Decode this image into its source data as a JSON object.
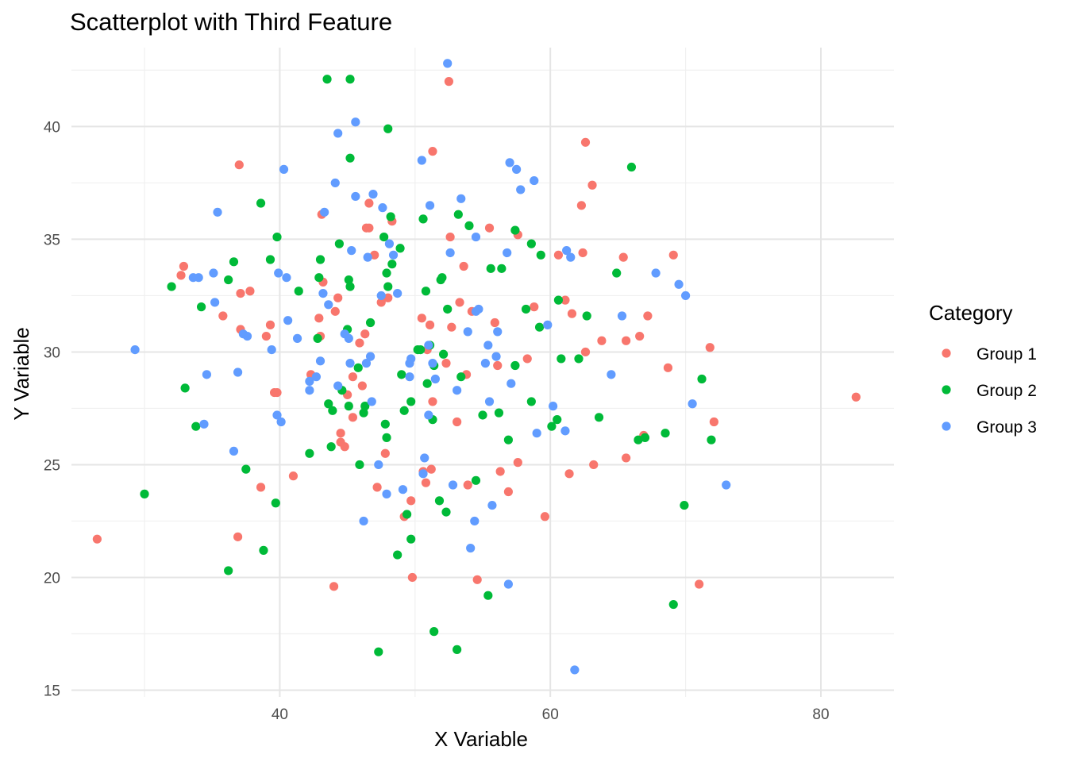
{
  "chart_data": {
    "type": "scatter",
    "title": "Scatterplot with Third Feature",
    "xlabel": "X Variable",
    "ylabel": "Y Variable",
    "xlim": [
      24.6,
      85.4
    ],
    "ylim": [
      14.7,
      43.5
    ],
    "x_ticks": [
      40,
      60,
      80
    ],
    "y_ticks": [
      15,
      20,
      25,
      30,
      35,
      40
    ],
    "grid": true,
    "legend": {
      "title": "Category",
      "position": "right"
    },
    "series": [
      {
        "name": "Group 1",
        "color": "#F8766D",
        "points": [
          [
            26.5,
            21.7
          ],
          [
            32.7,
            33.4
          ],
          [
            32.9,
            33.8
          ],
          [
            36.9,
            21.8
          ],
          [
            37.0,
            38.3
          ],
          [
            37.1,
            32.6
          ],
          [
            37.1,
            31.0
          ],
          [
            35.8,
            31.6
          ],
          [
            37.8,
            32.7
          ],
          [
            38.6,
            24.0
          ],
          [
            39.0,
            30.7
          ],
          [
            39.3,
            31.2
          ],
          [
            39.6,
            28.2
          ],
          [
            39.8,
            28.2
          ],
          [
            41.0,
            24.5
          ],
          [
            42.3,
            29.0
          ],
          [
            42.9,
            31.5
          ],
          [
            43.0,
            30.7
          ],
          [
            43.1,
            36.1
          ],
          [
            43.2,
            33.1
          ],
          [
            44.1,
            31.8
          ],
          [
            44.3,
            32.4
          ],
          [
            44.5,
            26.4
          ],
          [
            44.5,
            26.0
          ],
          [
            44.0,
            19.6
          ],
          [
            44.8,
            25.8
          ],
          [
            45.0,
            28.1
          ],
          [
            45.4,
            28.9
          ],
          [
            45.4,
            27.1
          ],
          [
            45.9,
            30.4
          ],
          [
            46.1,
            28.5
          ],
          [
            46.3,
            30.8
          ],
          [
            46.4,
            35.5
          ],
          [
            46.6,
            35.5
          ],
          [
            46.6,
            36.6
          ],
          [
            47.0,
            34.3
          ],
          [
            47.2,
            24.0
          ],
          [
            47.5,
            32.2
          ],
          [
            47.8,
            25.5
          ],
          [
            48.0,
            32.4
          ],
          [
            48.3,
            35.8
          ],
          [
            49.2,
            22.7
          ],
          [
            49.7,
            23.4
          ],
          [
            49.8,
            20.0
          ],
          [
            50.5,
            31.5
          ],
          [
            50.6,
            24.7
          ],
          [
            50.8,
            24.2
          ],
          [
            50.9,
            30.1
          ],
          [
            51.1,
            31.2
          ],
          [
            51.2,
            24.8
          ],
          [
            51.3,
            27.8
          ],
          [
            51.3,
            38.9
          ],
          [
            52.3,
            29.5
          ],
          [
            52.5,
            42.0
          ],
          [
            52.6,
            35.1
          ],
          [
            52.7,
            31.1
          ],
          [
            53.1,
            26.9
          ],
          [
            53.3,
            32.2
          ],
          [
            53.6,
            33.8
          ],
          [
            53.9,
            24.1
          ],
          [
            53.8,
            29.0
          ],
          [
            54.2,
            31.8
          ],
          [
            54.6,
            19.9
          ],
          [
            55.5,
            35.5
          ],
          [
            55.9,
            31.3
          ],
          [
            56.1,
            29.4
          ],
          [
            56.3,
            24.7
          ],
          [
            56.9,
            23.8
          ],
          [
            57.6,
            25.1
          ],
          [
            57.6,
            35.2
          ],
          [
            58.3,
            29.7
          ],
          [
            58.8,
            32.0
          ],
          [
            59.6,
            22.7
          ],
          [
            60.6,
            34.3
          ],
          [
            61.1,
            32.3
          ],
          [
            61.4,
            24.6
          ],
          [
            61.6,
            31.7
          ],
          [
            62.3,
            36.5
          ],
          [
            62.4,
            34.4
          ],
          [
            62.6,
            39.3
          ],
          [
            62.6,
            30.0
          ],
          [
            63.1,
            37.4
          ],
          [
            63.2,
            25.0
          ],
          [
            63.8,
            30.5
          ],
          [
            65.4,
            34.2
          ],
          [
            65.6,
            30.5
          ],
          [
            65.6,
            25.3
          ],
          [
            66.6,
            30.7
          ],
          [
            66.9,
            26.3
          ],
          [
            67.2,
            31.6
          ],
          [
            68.7,
            29.3
          ],
          [
            69.1,
            34.3
          ],
          [
            71.0,
            19.7
          ],
          [
            71.8,
            30.2
          ],
          [
            72.1,
            26.9
          ],
          [
            82.6,
            28.0
          ]
        ]
      },
      {
        "name": "Group 2",
        "color": "#00BA38",
        "points": [
          [
            30.0,
            23.7
          ],
          [
            32.0,
            32.9
          ],
          [
            33.0,
            28.4
          ],
          [
            33.8,
            26.7
          ],
          [
            34.2,
            32.0
          ],
          [
            36.2,
            33.2
          ],
          [
            36.6,
            34.0
          ],
          [
            36.2,
            20.3
          ],
          [
            37.5,
            24.8
          ],
          [
            38.6,
            36.6
          ],
          [
            38.8,
            21.2
          ],
          [
            39.3,
            34.1
          ],
          [
            39.8,
            35.1
          ],
          [
            39.7,
            23.3
          ],
          [
            41.4,
            32.7
          ],
          [
            42.2,
            25.5
          ],
          [
            42.8,
            30.6
          ],
          [
            42.9,
            33.3
          ],
          [
            43.0,
            34.1
          ],
          [
            43.5,
            42.1
          ],
          [
            43.6,
            27.7
          ],
          [
            43.8,
            25.8
          ],
          [
            43.9,
            27.4
          ],
          [
            44.4,
            34.8
          ],
          [
            44.6,
            28.3
          ],
          [
            45.0,
            31.0
          ],
          [
            45.1,
            27.6
          ],
          [
            45.1,
            33.2
          ],
          [
            45.2,
            42.1
          ],
          [
            45.2,
            38.6
          ],
          [
            45.2,
            32.9
          ],
          [
            45.8,
            29.3
          ],
          [
            45.9,
            25.0
          ],
          [
            46.2,
            27.3
          ],
          [
            46.3,
            27.6
          ],
          [
            46.7,
            31.3
          ],
          [
            47.3,
            16.7
          ],
          [
            47.7,
            35.1
          ],
          [
            47.8,
            26.8
          ],
          [
            47.9,
            33.5
          ],
          [
            47.9,
            26.2
          ],
          [
            48.0,
            32.9
          ],
          [
            48.0,
            39.9
          ],
          [
            48.2,
            36.0
          ],
          [
            48.3,
            33.9
          ],
          [
            48.7,
            21.0
          ],
          [
            48.9,
            34.6
          ],
          [
            49.0,
            29.0
          ],
          [
            49.2,
            27.4
          ],
          [
            49.4,
            22.8
          ],
          [
            49.7,
            21.7
          ],
          [
            49.7,
            27.8
          ],
          [
            50.2,
            30.1
          ],
          [
            50.4,
            30.1
          ],
          [
            50.6,
            35.9
          ],
          [
            50.8,
            32.7
          ],
          [
            50.9,
            28.6
          ],
          [
            51.1,
            30.3
          ],
          [
            51.3,
            27.0
          ],
          [
            51.4,
            29.4
          ],
          [
            51.4,
            17.6
          ],
          [
            51.8,
            23.4
          ],
          [
            51.9,
            33.2
          ],
          [
            52.0,
            33.3
          ],
          [
            52.1,
            29.9
          ],
          [
            52.3,
            22.9
          ],
          [
            52.4,
            31.9
          ],
          [
            53.1,
            16.8
          ],
          [
            53.2,
            36.1
          ],
          [
            53.4,
            28.9
          ],
          [
            54.0,
            35.6
          ],
          [
            54.5,
            24.3
          ],
          [
            55.0,
            27.2
          ],
          [
            55.4,
            19.2
          ],
          [
            55.6,
            33.7
          ],
          [
            56.2,
            27.3
          ],
          [
            56.4,
            33.7
          ],
          [
            56.9,
            26.1
          ],
          [
            57.4,
            29.4
          ],
          [
            57.4,
            35.4
          ],
          [
            58.2,
            31.9
          ],
          [
            58.6,
            27.8
          ],
          [
            58.6,
            34.8
          ],
          [
            59.2,
            31.1
          ],
          [
            59.3,
            34.3
          ],
          [
            60.1,
            26.7
          ],
          [
            60.5,
            27.0
          ],
          [
            60.6,
            32.3
          ],
          [
            60.8,
            29.7
          ],
          [
            62.1,
            29.7
          ],
          [
            62.7,
            31.6
          ],
          [
            63.6,
            27.1
          ],
          [
            64.9,
            33.5
          ],
          [
            66.0,
            38.2
          ],
          [
            66.5,
            26.1
          ],
          [
            67.0,
            26.2
          ],
          [
            68.5,
            26.4
          ],
          [
            69.1,
            18.8
          ],
          [
            69.9,
            23.2
          ],
          [
            71.2,
            28.8
          ],
          [
            71.9,
            26.1
          ]
        ]
      },
      {
        "name": "Group 3",
        "color": "#619CFF",
        "points": [
          [
            29.3,
            30.1
          ],
          [
            33.6,
            33.3
          ],
          [
            34.0,
            33.3
          ],
          [
            34.4,
            26.8
          ],
          [
            34.6,
            29.0
          ],
          [
            35.1,
            33.5
          ],
          [
            35.2,
            32.2
          ],
          [
            35.4,
            36.2
          ],
          [
            36.6,
            25.6
          ],
          [
            36.9,
            29.1
          ],
          [
            37.3,
            30.8
          ],
          [
            37.6,
            30.7
          ],
          [
            39.4,
            30.1
          ],
          [
            39.8,
            27.2
          ],
          [
            39.9,
            33.5
          ],
          [
            40.1,
            26.9
          ],
          [
            40.3,
            38.1
          ],
          [
            40.5,
            33.3
          ],
          [
            40.6,
            31.4
          ],
          [
            41.3,
            30.6
          ],
          [
            42.2,
            28.3
          ],
          [
            42.2,
            28.7
          ],
          [
            42.7,
            28.9
          ],
          [
            43.0,
            29.6
          ],
          [
            43.2,
            32.6
          ],
          [
            43.3,
            36.2
          ],
          [
            43.6,
            32.1
          ],
          [
            44.1,
            37.5
          ],
          [
            44.3,
            28.5
          ],
          [
            44.3,
            39.7
          ],
          [
            44.8,
            30.8
          ],
          [
            45.1,
            30.6
          ],
          [
            45.2,
            29.5
          ],
          [
            45.3,
            34.5
          ],
          [
            45.6,
            36.9
          ],
          [
            45.6,
            40.2
          ],
          [
            46.2,
            22.5
          ],
          [
            46.4,
            29.5
          ],
          [
            46.5,
            34.2
          ],
          [
            46.7,
            29.8
          ],
          [
            46.8,
            27.8
          ],
          [
            46.9,
            37.0
          ],
          [
            47.3,
            25.0
          ],
          [
            47.5,
            32.5
          ],
          [
            47.6,
            36.4
          ],
          [
            47.9,
            23.7
          ],
          [
            48.1,
            34.8
          ],
          [
            48.4,
            34.3
          ],
          [
            48.7,
            32.6
          ],
          [
            49.1,
            23.9
          ],
          [
            49.6,
            29.5
          ],
          [
            49.6,
            28.9
          ],
          [
            49.7,
            29.7
          ],
          [
            50.5,
            38.5
          ],
          [
            50.6,
            24.6
          ],
          [
            50.7,
            25.3
          ],
          [
            51.0,
            30.3
          ],
          [
            51.0,
            27.2
          ],
          [
            51.1,
            36.5
          ],
          [
            51.3,
            29.5
          ],
          [
            51.5,
            28.8
          ],
          [
            52.4,
            42.8
          ],
          [
            52.6,
            34.4
          ],
          [
            52.8,
            24.1
          ],
          [
            53.1,
            28.3
          ],
          [
            53.4,
            36.8
          ],
          [
            53.9,
            30.9
          ],
          [
            54.1,
            21.3
          ],
          [
            54.4,
            22.5
          ],
          [
            54.5,
            31.8
          ],
          [
            54.5,
            35.1
          ],
          [
            54.7,
            31.9
          ],
          [
            55.2,
            29.5
          ],
          [
            55.4,
            30.3
          ],
          [
            55.5,
            27.8
          ],
          [
            55.7,
            23.2
          ],
          [
            56.0,
            29.8
          ],
          [
            56.1,
            30.9
          ],
          [
            56.8,
            34.4
          ],
          [
            56.9,
            19.7
          ],
          [
            57.0,
            38.4
          ],
          [
            57.1,
            28.6
          ],
          [
            57.5,
            38.1
          ],
          [
            57.8,
            37.2
          ],
          [
            58.8,
            37.6
          ],
          [
            59.0,
            26.4
          ],
          [
            59.8,
            31.2
          ],
          [
            60.2,
            27.6
          ],
          [
            61.1,
            26.5
          ],
          [
            61.2,
            34.5
          ],
          [
            61.5,
            34.2
          ],
          [
            61.8,
            15.9
          ],
          [
            64.5,
            29.0
          ],
          [
            65.3,
            31.6
          ],
          [
            67.8,
            33.5
          ],
          [
            69.5,
            33.0
          ],
          [
            70.0,
            32.5
          ],
          [
            70.5,
            27.7
          ],
          [
            73.0,
            24.1
          ]
        ]
      }
    ]
  }
}
